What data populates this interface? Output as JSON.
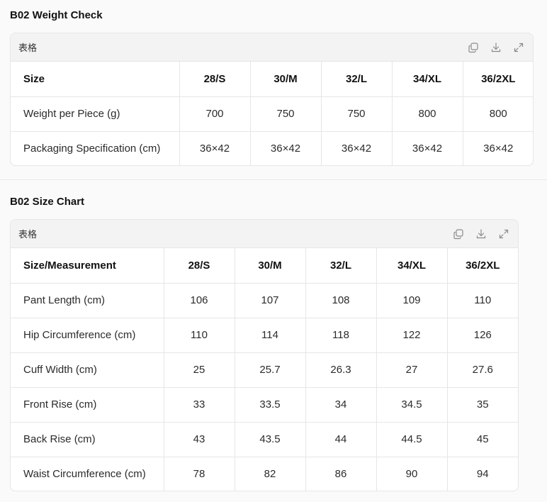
{
  "sections": [
    {
      "title": "B02 Weight Check",
      "table_label": "表格",
      "headers": [
        "Size",
        "28/S",
        "30/M",
        "32/L",
        "34/XL",
        "36/2XL"
      ],
      "rows": [
        [
          "Weight per Piece (g)",
          "700",
          "750",
          "750",
          "800",
          "800"
        ],
        [
          "Packaging Specification (cm)",
          "36×42",
          "36×42",
          "36×42",
          "36×42",
          "36×42"
        ]
      ]
    },
    {
      "title": "B02 Size Chart",
      "table_label": "表格",
      "headers": [
        "Size/Measurement",
        "28/S",
        "30/M",
        "32/L",
        "34/XL",
        "36/2XL"
      ],
      "rows": [
        [
          "Pant Length (cm)",
          "106",
          "107",
          "108",
          "109",
          "110"
        ],
        [
          "Hip Circumference (cm)",
          "110",
          "114",
          "118",
          "122",
          "126"
        ],
        [
          "Cuff Width (cm)",
          "25",
          "25.7",
          "26.3",
          "27",
          "27.6"
        ],
        [
          "Front Rise (cm)",
          "33",
          "33.5",
          "34",
          "34.5",
          "35"
        ],
        [
          "Back Rise (cm)",
          "43",
          "43.5",
          "44",
          "44.5",
          "45"
        ],
        [
          "Waist Circumference (cm)",
          "78",
          "82",
          "86",
          "90",
          "94"
        ]
      ]
    }
  ],
  "icons": [
    "copy-icon",
    "download-icon",
    "expand-icon"
  ]
}
